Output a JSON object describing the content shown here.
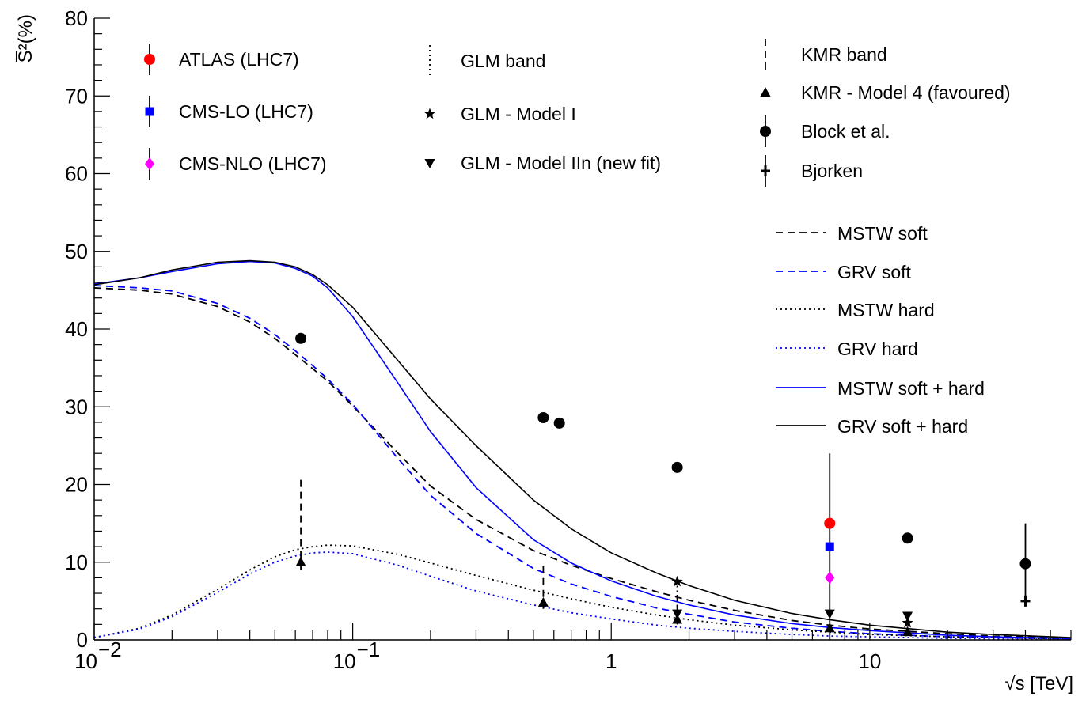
{
  "chart_data": {
    "type": "scatter",
    "title": "",
    "xlabel": "√s [TeV]",
    "ylabel": "S̅²(%)",
    "x_scale": "log",
    "xlim": [
      0.01,
      60
    ],
    "ylim": [
      0,
      80
    ],
    "grid": false,
    "legend_position": "top and right, inside plot",
    "y_ticks": [
      {
        "value": 0,
        "label": "0"
      },
      {
        "value": 10,
        "label": "10"
      },
      {
        "value": 20,
        "label": "20"
      },
      {
        "value": 30,
        "label": "30"
      },
      {
        "value": 40,
        "label": "40"
      },
      {
        "value": 50,
        "label": "50"
      },
      {
        "value": 60,
        "label": "60"
      },
      {
        "value": 70,
        "label": "70"
      },
      {
        "value": 80,
        "label": "80"
      }
    ],
    "x_ticks": [
      {
        "value": 0.01,
        "base": "10",
        "exp": "−2",
        "label": ""
      },
      {
        "value": 0.1,
        "base": "10",
        "exp": "−1",
        "label": ""
      },
      {
        "value": 1,
        "base": "",
        "exp": "",
        "label": "1"
      },
      {
        "value": 10,
        "base": "",
        "exp": "",
        "label": "10"
      }
    ],
    "curves": [
      {
        "name": "MSTW soft",
        "color": "#000000",
        "dash": "dashed",
        "x": [
          0.01,
          0.015,
          0.02,
          0.03,
          0.04,
          0.05,
          0.06,
          0.07,
          0.08,
          0.1,
          0.15,
          0.2,
          0.3,
          0.5,
          0.7,
          1,
          1.5,
          2,
          3,
          5,
          7,
          10,
          20,
          30,
          60
        ],
        "y": [
          45.3,
          45.0,
          44.5,
          42.9,
          40.9,
          38.8,
          36.7,
          34.9,
          33.3,
          30.1,
          24.0,
          19.8,
          15.5,
          11.5,
          9.6,
          7.9,
          6.2,
          5.1,
          3.8,
          2.5,
          1.9,
          1.4,
          0.8,
          0.5,
          0.25
        ]
      },
      {
        "name": "GRV soft",
        "color": "#0000ff",
        "dash": "dashed",
        "x": [
          0.01,
          0.015,
          0.02,
          0.03,
          0.04,
          0.05,
          0.06,
          0.07,
          0.08,
          0.1,
          0.15,
          0.2,
          0.3,
          0.5,
          0.7,
          1,
          1.5,
          2,
          3,
          5,
          7,
          10,
          20,
          30,
          60
        ],
        "y": [
          45.6,
          45.3,
          44.9,
          43.3,
          41.4,
          39.3,
          37.2,
          35.3,
          33.6,
          30.3,
          23.3,
          18.6,
          13.7,
          9.2,
          7.2,
          5.6,
          4.1,
          3.3,
          2.3,
          1.5,
          1.1,
          0.8,
          0.4,
          0.3,
          0.15
        ]
      },
      {
        "name": "MSTW hard",
        "color": "#000000",
        "dash": "dotted",
        "x": [
          0.01,
          0.015,
          0.02,
          0.03,
          0.04,
          0.05,
          0.06,
          0.07,
          0.08,
          0.1,
          0.15,
          0.2,
          0.3,
          0.5,
          0.7,
          1,
          1.5,
          2,
          3,
          5,
          7,
          10,
          20,
          30,
          60
        ],
        "y": [
          0.3,
          1.5,
          3.2,
          6.5,
          9.0,
          10.7,
          11.6,
          12.0,
          12.2,
          12.1,
          11.0,
          9.9,
          8.3,
          6.4,
          5.3,
          4.2,
          3.2,
          2.6,
          1.9,
          1.3,
          1.0,
          0.7,
          0.4,
          0.3,
          0.1
        ]
      },
      {
        "name": "GRV hard",
        "color": "#0000ff",
        "dash": "dotted",
        "x": [
          0.01,
          0.015,
          0.02,
          0.03,
          0.04,
          0.05,
          0.06,
          0.07,
          0.08,
          0.1,
          0.15,
          0.2,
          0.3,
          0.5,
          0.7,
          1,
          1.5,
          2,
          3,
          5,
          7,
          10,
          20,
          30,
          60
        ],
        "y": [
          0.3,
          1.4,
          3.0,
          6.1,
          8.5,
          10.0,
          10.8,
          11.2,
          11.3,
          11.1,
          9.6,
          8.2,
          6.3,
          4.5,
          3.5,
          2.7,
          1.9,
          1.5,
          1.1,
          0.7,
          0.5,
          0.4,
          0.2,
          0.15,
          0.05
        ]
      },
      {
        "name": "MSTW soft + hard",
        "color": "#0000ff",
        "dash": "solid",
        "x": [
          0.01,
          0.015,
          0.02,
          0.03,
          0.04,
          0.05,
          0.06,
          0.07,
          0.08,
          0.1,
          0.15,
          0.2,
          0.3,
          0.5,
          0.7,
          1,
          1.5,
          2,
          3,
          5,
          7,
          10,
          20,
          30,
          60
        ],
        "y": [
          45.8,
          46.6,
          47.4,
          48.4,
          48.7,
          48.5,
          47.8,
          46.8,
          45.3,
          41.6,
          33.0,
          26.8,
          19.6,
          12.9,
          9.9,
          7.6,
          5.6,
          4.5,
          3.2,
          2.1,
          1.6,
          1.2,
          0.6,
          0.4,
          0.2
        ]
      },
      {
        "name": "GRV soft + hard",
        "color": "#000000",
        "dash": "solid",
        "x": [
          0.01,
          0.015,
          0.02,
          0.03,
          0.04,
          0.05,
          0.06,
          0.07,
          0.08,
          0.1,
          0.15,
          0.2,
          0.3,
          0.5,
          0.7,
          1,
          1.5,
          2,
          3,
          5,
          7,
          10,
          20,
          30,
          60
        ],
        "y": [
          45.7,
          46.6,
          47.6,
          48.6,
          48.8,
          48.6,
          48.0,
          47.0,
          45.7,
          42.8,
          35.9,
          31.0,
          25.0,
          18.0,
          14.3,
          11.2,
          8.6,
          7.0,
          5.1,
          3.4,
          2.6,
          1.9,
          1.0,
          0.7,
          0.3
        ]
      }
    ],
    "points": [
      {
        "series": "ATLAS (LHC7)",
        "marker": "circle",
        "color": "#ff0000",
        "x": 7,
        "y": 15.0
      },
      {
        "series": "CMS-LO (LHC7)",
        "marker": "square",
        "color": "#0000ff",
        "x": 7,
        "y": 12.0
      },
      {
        "series": "CMS-NLO (LHC7)",
        "marker": "diamond",
        "color": "#ff00ff",
        "x": 7,
        "y": 8.0
      },
      {
        "series": "Block et al.",
        "marker": "circle",
        "color": "#000000",
        "x": 0.063,
        "y": 38.8
      },
      {
        "series": "Block et al.",
        "marker": "circle",
        "color": "#000000",
        "x": 0.546,
        "y": 28.6
      },
      {
        "series": "Block et al.",
        "marker": "circle",
        "color": "#000000",
        "x": 0.63,
        "y": 27.9
      },
      {
        "series": "Block et al.",
        "marker": "circle",
        "color": "#000000",
        "x": 1.8,
        "y": 22.2
      },
      {
        "series": "Block et al.",
        "marker": "circle",
        "color": "#000000",
        "x": 14,
        "y": 13.1
      },
      {
        "series": "Block et al.",
        "marker": "circle",
        "color": "#000000",
        "x": 40,
        "y": 9.8
      },
      {
        "series": "KMR - Model 4 (favoured)",
        "marker": "triangle-up",
        "color": "#000000",
        "x": 0.063,
        "y": 10.0
      },
      {
        "series": "KMR - Model 4 (favoured)",
        "marker": "triangle-up",
        "color": "#000000",
        "x": 0.546,
        "y": 4.8
      },
      {
        "series": "KMR - Model 4 (favoured)",
        "marker": "triangle-up",
        "color": "#000000",
        "x": 1.8,
        "y": 2.6
      },
      {
        "series": "KMR - Model 4 (favoured)",
        "marker": "triangle-up",
        "color": "#000000",
        "x": 7,
        "y": 1.5
      },
      {
        "series": "KMR - Model 4 (favoured)",
        "marker": "triangle-up",
        "color": "#000000",
        "x": 14,
        "y": 1.0
      },
      {
        "series": "GLM - Model I",
        "marker": "star",
        "color": "#000000",
        "x": 1.8,
        "y": 7.5
      },
      {
        "series": "GLM - Model I",
        "marker": "star",
        "color": "#000000",
        "x": 14,
        "y": 2.2
      },
      {
        "series": "GLM - Model IIn (new fit)",
        "marker": "triangle-down",
        "color": "#000000",
        "x": 1.8,
        "y": 3.4
      },
      {
        "series": "GLM - Model IIn (new fit)",
        "marker": "triangle-down",
        "color": "#000000",
        "x": 7,
        "y": 3.4
      },
      {
        "series": "GLM - Model IIn (new fit)",
        "marker": "triangle-down",
        "color": "#000000",
        "x": 14,
        "y": 3.1
      },
      {
        "series": "Bjorken",
        "marker": "cross",
        "color": "#000000",
        "x": 40,
        "y": 5.0
      }
    ],
    "error_bars": [
      {
        "series": "LHC7 measurements",
        "style": "solid",
        "x": 7,
        "y_low": 0,
        "y_high": 24
      },
      {
        "series": "Block et al.",
        "style": "solid",
        "x": 40,
        "y_low": 4.5,
        "y_high": 15.0
      },
      {
        "series": "KMR band",
        "style": "dashed",
        "x": 0.063,
        "y_low": 9.0,
        "y_high": 21.0
      },
      {
        "series": "KMR band",
        "style": "dashed",
        "x": 0.546,
        "y_low": 4.0,
        "y_high": 9.5
      },
      {
        "series": "KMR band",
        "style": "dashed",
        "x": 1.8,
        "y_low": 2.0,
        "y_high": 5.8
      },
      {
        "series": "KMR band",
        "style": "dashed",
        "x": 7,
        "y_low": 1.0,
        "y_high": 2.2
      },
      {
        "series": "GLM band",
        "style": "dotted",
        "x": 1.8,
        "y_low": 2.5,
        "y_high": 8.0
      },
      {
        "series": "GLM band",
        "style": "dotted",
        "x": 14,
        "y_low": 1.5,
        "y_high": 3.5
      }
    ],
    "legend": {
      "top": [
        {
          "label": "ATLAS (LHC7)",
          "marker": "circle",
          "color": "#ff0000",
          "bar": "solid"
        },
        {
          "label": "CMS-LO (LHC7)",
          "marker": "square",
          "color": "#0000ff",
          "bar": "solid"
        },
        {
          "label": "CMS-NLO (LHC7)",
          "marker": "diamond",
          "color": "#ff00ff",
          "bar": "solid"
        },
        {
          "label": "GLM band",
          "marker": "none",
          "color": "#000000",
          "bar": "dotted"
        },
        {
          "label": "GLM - Model I",
          "marker": "star",
          "color": "#000000",
          "bar": "none"
        },
        {
          "label": "GLM - Model IIn (new fit)",
          "marker": "triangle-down",
          "color": "#000000",
          "bar": "none"
        },
        {
          "label": "KMR band",
          "marker": "none",
          "color": "#000000",
          "bar": "dashed"
        },
        {
          "label": "KMR - Model 4 (favoured)",
          "marker": "triangle-up",
          "color": "#000000",
          "bar": "none"
        },
        {
          "label": "Block et al.",
          "marker": "circle",
          "color": "#000000",
          "bar": "solid"
        },
        {
          "label": "Bjorken",
          "marker": "cross",
          "color": "#000000",
          "bar": "solid"
        }
      ],
      "lines": [
        {
          "label": "MSTW soft",
          "color": "#000000",
          "dash": "dashed"
        },
        {
          "label": "GRV soft",
          "color": "#0000ff",
          "dash": "dashed"
        },
        {
          "label": "MSTW hard",
          "color": "#000000",
          "dash": "dotted"
        },
        {
          "label": "GRV hard",
          "color": "#0000ff",
          "dash": "dotted"
        },
        {
          "label": "MSTW soft + hard",
          "color": "#0000ff",
          "dash": "solid"
        },
        {
          "label": "GRV soft + hard",
          "color": "#000000",
          "dash": "solid"
        }
      ]
    }
  }
}
